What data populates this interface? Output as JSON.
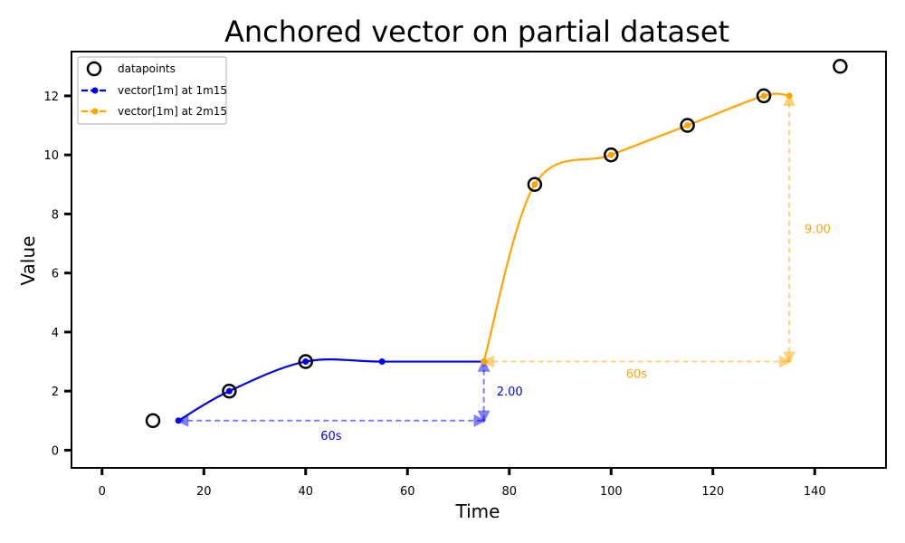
{
  "chart_data": {
    "type": "line",
    "title": "Anchored vector on partial dataset",
    "xlabel": "Time",
    "ylabel": "Value",
    "xlim": [
      -6,
      154
    ],
    "ylim": [
      -0.6,
      13.5
    ],
    "xticks": [
      0,
      20,
      40,
      60,
      80,
      100,
      120,
      140
    ],
    "yticks": [
      0,
      2,
      4,
      6,
      8,
      10,
      12
    ],
    "grid": false,
    "legend_position": "top-left",
    "datapoints": {
      "name": "datapoints",
      "x": [
        10,
        25,
        40,
        85,
        100,
        115,
        130,
        145
      ],
      "y": [
        1,
        2,
        3,
        9,
        10,
        11,
        12,
        13
      ]
    },
    "series": [
      {
        "name": "vector[1m] at 1m15",
        "color": "#0000ee",
        "x": [
          15,
          25,
          40,
          55,
          75
        ],
        "y": [
          1,
          2,
          3,
          3,
          3
        ]
      },
      {
        "name": "vector[1m] at 2m15",
        "color": "#ffa500",
        "x": [
          75,
          85,
          100,
          115,
          130,
          135
        ],
        "y": [
          3,
          9,
          10,
          11,
          12,
          12
        ]
      }
    ],
    "annotations": [
      {
        "label": "60s",
        "series": 0,
        "kind": "horizontal",
        "from": [
          15,
          1
        ],
        "to": [
          75,
          1
        ],
        "label_at": [
          45,
          0.5
        ]
      },
      {
        "label": "2.00",
        "series": 0,
        "kind": "vertical",
        "from": [
          75,
          1
        ],
        "to": [
          75,
          3
        ],
        "label_at": [
          77.5,
          2
        ]
      },
      {
        "label": "60s",
        "series": 1,
        "kind": "horizontal",
        "from": [
          75,
          3
        ],
        "to": [
          135,
          3
        ],
        "label_at": [
          105,
          2.6
        ]
      },
      {
        "label": "9.00",
        "series": 1,
        "kind": "vertical",
        "from": [
          135,
          3
        ],
        "to": [
          135,
          12
        ],
        "label_at": [
          138,
          7.5
        ]
      }
    ]
  }
}
